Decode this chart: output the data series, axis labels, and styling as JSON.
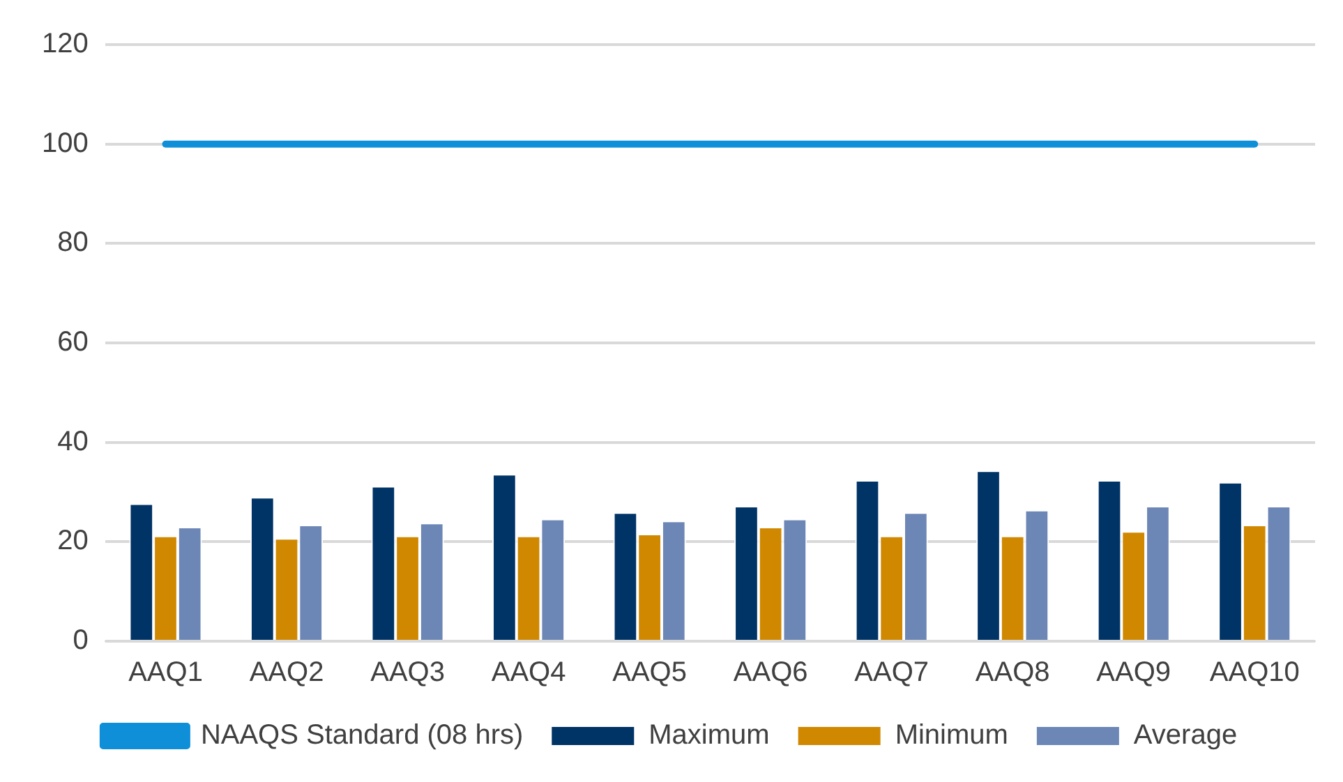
{
  "chart_data": {
    "type": "bar",
    "categories": [
      "AAQ1",
      "AAQ2",
      "AAQ3",
      "AAQ4",
      "AAQ5",
      "AAQ6",
      "AAQ7",
      "AAQ8",
      "AAQ9",
      "AAQ10"
    ],
    "series": [
      {
        "name": "Maximum",
        "color": "#003366",
        "values": [
          27.7,
          29.0,
          31.2,
          33.6,
          25.9,
          27.2,
          32.4,
          34.3,
          32.4,
          32.0
        ]
      },
      {
        "name": "Minimum",
        "color": "#d08800",
        "values": [
          21.2,
          20.7,
          21.2,
          21.2,
          21.6,
          23.0,
          21.2,
          21.2,
          22.1,
          23.4
        ]
      },
      {
        "name": "Average",
        "color": "#6c86b6",
        "values": [
          23.0,
          23.4,
          23.8,
          24.6,
          24.2,
          24.6,
          25.9,
          26.4,
          27.2,
          27.2
        ]
      },
      {
        "name": "NAAQS Standard (08 hrs)",
        "type": "line",
        "color": "#0f8fd8",
        "values": [
          100,
          100,
          100,
          100,
          100,
          100,
          100,
          100,
          100,
          100
        ]
      }
    ],
    "ylim": [
      0,
      120
    ],
    "yticks": [
      0,
      20,
      40,
      60,
      80,
      100,
      120
    ],
    "grid": "y",
    "legend": "bottom",
    "marker": "none"
  }
}
